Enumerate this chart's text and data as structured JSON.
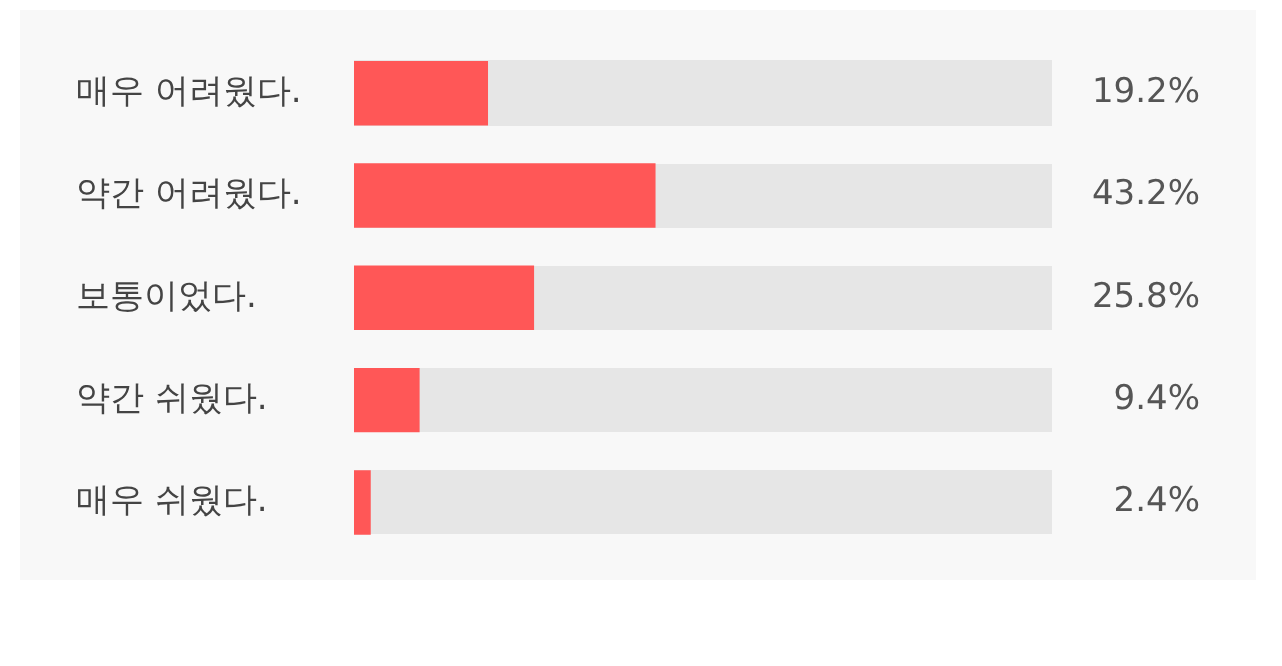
{
  "chart_data": {
    "type": "bar",
    "orientation": "horizontal",
    "categories": [
      "매우 어려웠다.",
      "약간 어려웠다.",
      "보통이었다.",
      "약간 쉬웠다.",
      "매우 쉬웠다."
    ],
    "values": [
      19.2,
      43.2,
      25.8,
      9.4,
      2.4
    ],
    "value_labels": [
      "19.2%",
      "43.2%",
      "25.8%",
      "9.4%",
      "2.4%"
    ],
    "color": "#ff5757",
    "xlim": [
      0,
      100
    ],
    "tick_labels": "y"
  }
}
